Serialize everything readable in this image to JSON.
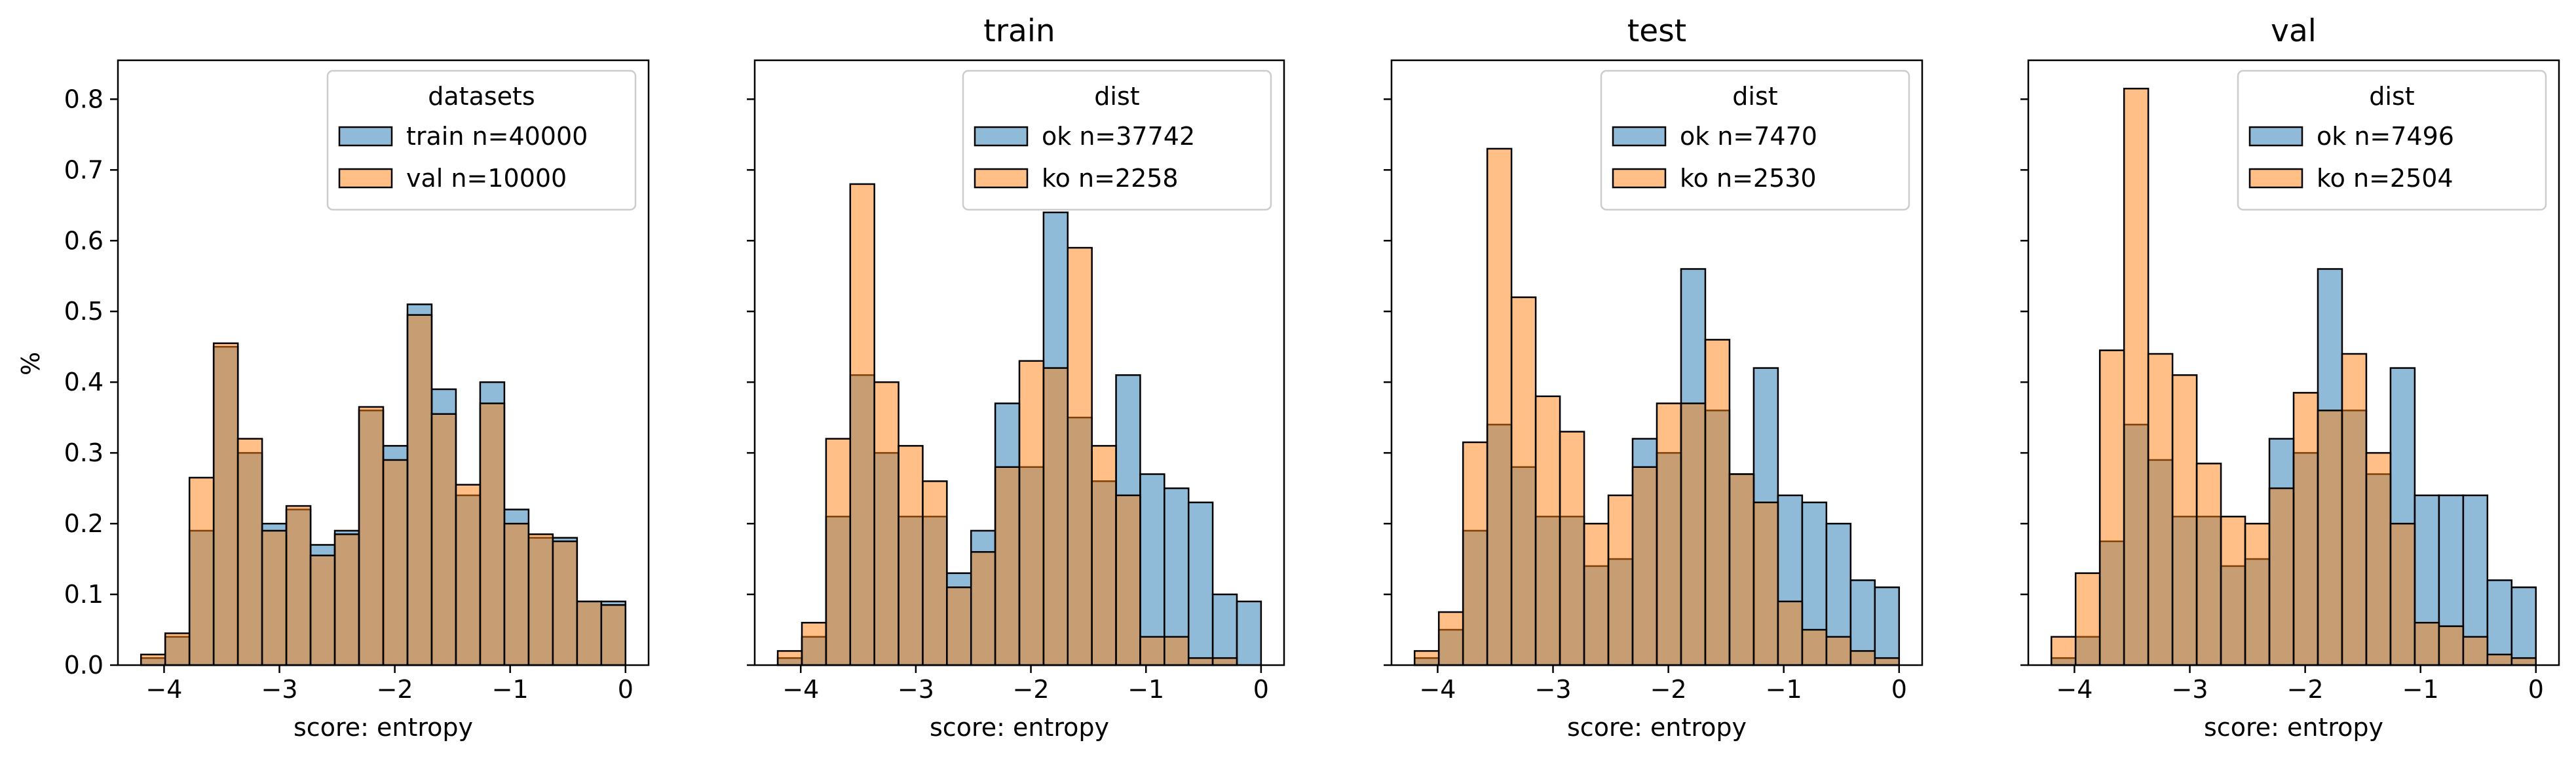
{
  "figure": {
    "ylabel": "%",
    "xlabel": "score: entropy"
  },
  "colors": {
    "series_a": "#1f77b4",
    "series_b": "#ff7f0e",
    "overlap": "#b08c68"
  },
  "chart_data": [
    {
      "type": "histogram",
      "title": "",
      "legend": {
        "title": "datasets",
        "placement": "top-right"
      },
      "xlabel": "score: entropy",
      "ylabel": "%",
      "xlim": [
        -4.4,
        0.2
      ],
      "ylim": [
        0,
        0.855
      ],
      "xticks": [
        -4,
        -3,
        -2,
        -1,
        0
      ],
      "yticks": [
        0.0,
        0.1,
        0.2,
        0.3,
        0.4,
        0.5,
        0.6,
        0.7,
        0.8
      ],
      "bin_edges": [
        -4.2,
        -3.99,
        -3.78,
        -3.57,
        -3.36,
        -3.15,
        -2.94,
        -2.73,
        -2.52,
        -2.31,
        -2.1,
        -1.89,
        -1.68,
        -1.47,
        -1.26,
        -1.05,
        -0.84,
        -0.63,
        -0.42,
        -0.21,
        0.0
      ],
      "series": [
        {
          "name": "train n=40000",
          "values": [
            0.01,
            0.04,
            0.19,
            0.45,
            0.3,
            0.2,
            0.22,
            0.17,
            0.19,
            0.36,
            0.31,
            0.51,
            0.39,
            0.24,
            0.4,
            0.22,
            0.18,
            0.18,
            0.09,
            0.09
          ]
        },
        {
          "name": "val n=10000",
          "values": [
            0.015,
            0.045,
            0.265,
            0.455,
            0.32,
            0.19,
            0.225,
            0.155,
            0.185,
            0.365,
            0.29,
            0.495,
            0.355,
            0.255,
            0.37,
            0.2,
            0.185,
            0.175,
            0.09,
            0.085
          ]
        }
      ]
    },
    {
      "type": "histogram",
      "title": "train",
      "legend": {
        "title": "dist",
        "placement": "top-right"
      },
      "xlabel": "score: entropy",
      "ylabel": "",
      "xlim": [
        -4.4,
        0.2
      ],
      "ylim": [
        0,
        0.855
      ],
      "xticks": [
        -4,
        -3,
        -2,
        -1,
        0
      ],
      "yticks": [
        0.0,
        0.1,
        0.2,
        0.3,
        0.4,
        0.5,
        0.6,
        0.7,
        0.8
      ],
      "bin_edges": [
        -4.2,
        -3.99,
        -3.78,
        -3.57,
        -3.36,
        -3.15,
        -2.94,
        -2.73,
        -2.52,
        -2.31,
        -2.1,
        -1.89,
        -1.68,
        -1.47,
        -1.26,
        -1.05,
        -0.84,
        -0.63,
        -0.42,
        -0.21,
        0.0
      ],
      "series": [
        {
          "name": "ok n=37742",
          "values": [
            0.01,
            0.04,
            0.21,
            0.41,
            0.3,
            0.21,
            0.21,
            0.13,
            0.19,
            0.37,
            0.28,
            0.64,
            0.35,
            0.26,
            0.41,
            0.27,
            0.25,
            0.23,
            0.1,
            0.09
          ]
        },
        {
          "name": "ko n=2258",
          "values": [
            0.02,
            0.06,
            0.32,
            0.68,
            0.4,
            0.31,
            0.26,
            0.11,
            0.16,
            0.28,
            0.43,
            0.42,
            0.59,
            0.31,
            0.24,
            0.04,
            0.04,
            0.01,
            0.01,
            0.0
          ]
        }
      ]
    },
    {
      "type": "histogram",
      "title": "test",
      "legend": {
        "title": "dist",
        "placement": "top-right"
      },
      "xlabel": "score: entropy",
      "ylabel": "",
      "xlim": [
        -4.4,
        0.2
      ],
      "ylim": [
        0,
        0.855
      ],
      "xticks": [
        -4,
        -3,
        -2,
        -1,
        0
      ],
      "yticks": [
        0.0,
        0.1,
        0.2,
        0.3,
        0.4,
        0.5,
        0.6,
        0.7,
        0.8
      ],
      "bin_edges": [
        -4.2,
        -3.99,
        -3.78,
        -3.57,
        -3.36,
        -3.15,
        -2.94,
        -2.73,
        -2.52,
        -2.31,
        -2.1,
        -1.89,
        -1.68,
        -1.47,
        -1.26,
        -1.05,
        -0.84,
        -0.63,
        -0.42,
        -0.21,
        0.0
      ],
      "series": [
        {
          "name": "ok n=7470",
          "values": [
            0.01,
            0.05,
            0.19,
            0.34,
            0.28,
            0.21,
            0.21,
            0.14,
            0.15,
            0.32,
            0.3,
            0.56,
            0.36,
            0.27,
            0.42,
            0.24,
            0.23,
            0.2,
            0.12,
            0.11
          ]
        },
        {
          "name": "ko n=2530",
          "values": [
            0.02,
            0.075,
            0.315,
            0.73,
            0.52,
            0.38,
            0.33,
            0.2,
            0.24,
            0.28,
            0.37,
            0.37,
            0.46,
            0.27,
            0.23,
            0.09,
            0.05,
            0.04,
            0.02,
            0.01
          ]
        }
      ]
    },
    {
      "type": "histogram",
      "title": "val",
      "legend": {
        "title": "dist",
        "placement": "top-right"
      },
      "xlabel": "score: entropy",
      "ylabel": "",
      "xlim": [
        -4.4,
        0.2
      ],
      "ylim": [
        0,
        0.855
      ],
      "xticks": [
        -4,
        -3,
        -2,
        -1,
        0
      ],
      "yticks": [
        0.0,
        0.1,
        0.2,
        0.3,
        0.4,
        0.5,
        0.6,
        0.7,
        0.8
      ],
      "bin_edges": [
        -4.2,
        -3.99,
        -3.78,
        -3.57,
        -3.36,
        -3.15,
        -2.94,
        -2.73,
        -2.52,
        -2.31,
        -2.1,
        -1.89,
        -1.68,
        -1.47,
        -1.26,
        -1.05,
        -0.84,
        -0.63,
        -0.42,
        -0.21,
        0.0
      ],
      "series": [
        {
          "name": "ok n=7496",
          "values": [
            0.01,
            0.04,
            0.175,
            0.34,
            0.29,
            0.21,
            0.21,
            0.14,
            0.15,
            0.32,
            0.3,
            0.56,
            0.36,
            0.27,
            0.42,
            0.24,
            0.24,
            0.24,
            0.12,
            0.11
          ]
        },
        {
          "name": "ko n=2504",
          "values": [
            0.04,
            0.13,
            0.445,
            0.815,
            0.44,
            0.41,
            0.285,
            0.21,
            0.2,
            0.25,
            0.385,
            0.36,
            0.44,
            0.3,
            0.2,
            0.06,
            0.055,
            0.04,
            0.015,
            0.01
          ]
        }
      ]
    }
  ]
}
